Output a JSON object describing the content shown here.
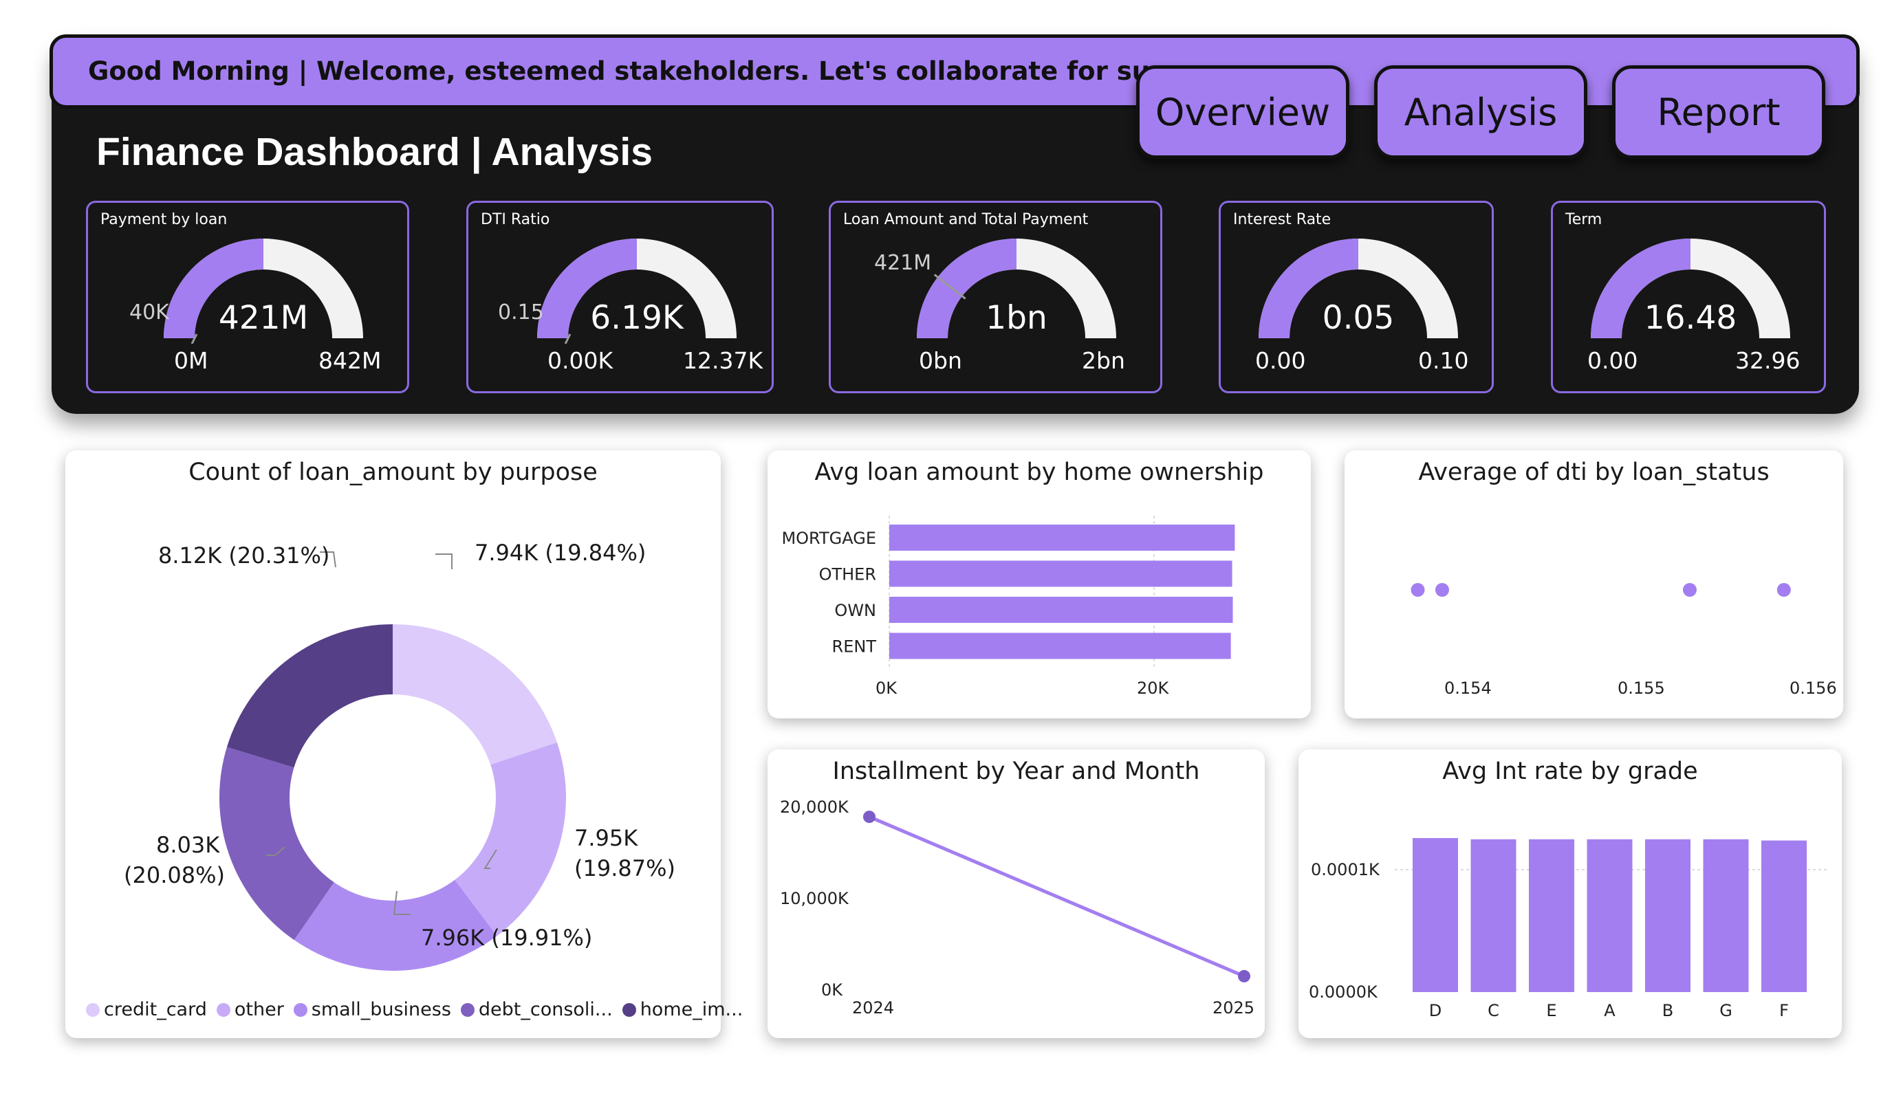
{
  "header": {
    "greeting": "Good Morning | Welcome, esteemed stakeholders. Let's collaborate for success.",
    "title": "Finance Dashboard | Analysis",
    "nav_tabs": [
      "Overview",
      "Analysis",
      "Report"
    ],
    "accent_color": "#a37ef0"
  },
  "kpis": [
    {
      "title": "Payment by loan",
      "value": "421M",
      "min": "0M",
      "max": "842M",
      "target_label": "40K",
      "fill_fraction": 0.5,
      "target_fraction": 0.0
    },
    {
      "title": "DTI Ratio",
      "value": "6.19K",
      "min": "0.00K",
      "max": "12.37K",
      "target_label": "0.15",
      "fill_fraction": 0.5,
      "target_fraction": 0.0
    },
    {
      "title": "Loan Amount and Total Payment",
      "value": "1bn",
      "min": "0bn",
      "max": "2bn",
      "target_label": "421M",
      "fill_fraction": 0.5,
      "target_fraction": 0.21
    },
    {
      "title": "Interest Rate",
      "value": "0.05",
      "min": "0.00",
      "max": "0.10",
      "target_label": "",
      "fill_fraction": 0.5,
      "target_fraction": null
    },
    {
      "title": "Term",
      "value": "16.48",
      "min": "0.00",
      "max": "32.96",
      "target_label": "",
      "fill_fraction": 0.5,
      "target_fraction": null
    }
  ],
  "charts": {
    "donut": {
      "title": "Count of loan_amount by purpose",
      "labels": [
        {
          "line1": "7.94K (19.84%)",
          "line2": ""
        },
        {
          "line1": "7.95K",
          "line2": "(19.87%)"
        },
        {
          "line1": "7.96K (19.91%)",
          "line2": ""
        },
        {
          "line1": "8.03K",
          "line2": "(20.08%)"
        },
        {
          "line1": "8.12K (20.31%)",
          "line2": ""
        }
      ],
      "legend": [
        "credit_card",
        "other",
        "small_business",
        "debt_consoli...",
        "home_im..."
      ]
    },
    "hbar": {
      "title": "Avg loan amount by home ownership",
      "x_ticks": [
        "0K",
        "20K"
      ]
    },
    "scatter": {
      "title": "Average of dti by loan_status",
      "x_ticks": [
        "0.154",
        "0.155",
        "0.156"
      ]
    },
    "line": {
      "title": "Installment by Year and Month",
      "y_ticks": [
        "20,000K",
        "10,000K",
        "0K"
      ]
    },
    "vbar": {
      "title": "Avg Int rate by grade",
      "y_ticks": [
        "0.0001K",
        "0.0000K"
      ]
    }
  },
  "chart_data": [
    {
      "type": "pie",
      "title": "Count of loan_amount by purpose",
      "categories": [
        "credit_card",
        "other",
        "small_business",
        "debt_consolidation",
        "home_improvement"
      ],
      "values": [
        7940,
        7950,
        7960,
        8030,
        8120
      ],
      "percent": [
        19.84,
        19.87,
        19.91,
        20.08,
        20.31
      ],
      "colors": [
        "#dccbfb",
        "#c6acf8",
        "#ad8cf2",
        "#7f60be",
        "#553f86"
      ],
      "legend": "bottom"
    },
    {
      "type": "bar",
      "orientation": "horizontal",
      "title": "Avg loan amount by home ownership",
      "categories": [
        "MORTGAGE",
        "OTHER",
        "OWN",
        "RENT"
      ],
      "values": [
        26100,
        25900,
        25950,
        25800
      ],
      "xlim": [
        0,
        36000
      ],
      "color": "#a37ef0"
    },
    {
      "type": "scatter",
      "title": "Average of dti by loan_status",
      "x": [
        0.15371,
        0.15385,
        0.15527,
        0.15581
      ],
      "y": [
        1,
        1,
        1,
        1
      ],
      "xlim": [
        0.1533,
        0.156
      ],
      "color": "#a37ef0"
    },
    {
      "type": "line",
      "title": "Installment by Year and Month",
      "x": [
        "2024",
        "2025"
      ],
      "values": [
        18800,
        1500
      ],
      "ylim": [
        0,
        20000
      ],
      "color": "#a37ef0"
    },
    {
      "type": "bar",
      "title": "Avg Int rate by grade",
      "categories": [
        "D",
        "C",
        "E",
        "A",
        "B",
        "G",
        "F"
      ],
      "values": [
        0.000126,
        0.000125,
        0.000125,
        0.000125,
        0.000125,
        0.000125,
        0.000124
      ],
      "ylim": [
        0,
        0.000126
      ],
      "color": "#a37ef0"
    }
  ]
}
